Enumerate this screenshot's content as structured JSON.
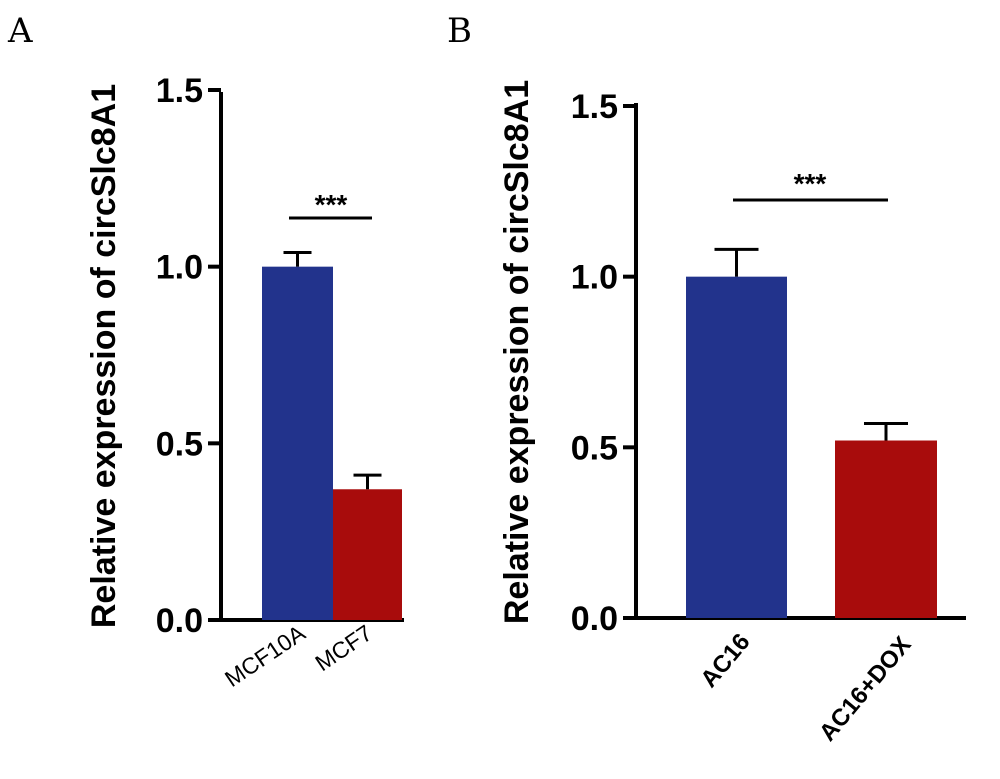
{
  "chart_data": [
    {
      "type": "bar",
      "panel": "A",
      "ylabel": "Relative expression of circSlc8A1",
      "ylim": [
        0,
        1.5
      ],
      "yticks": [
        "0.0",
        "0.5",
        "1.0",
        "1.5"
      ],
      "categories": [
        "MCF10A",
        "MCF7"
      ],
      "values": [
        1.0,
        0.37
      ],
      "errors": [
        0.04,
        0.04
      ],
      "colors": [
        "#22338c",
        "#a80c0c"
      ],
      "significance": {
        "label": "***",
        "from": 0,
        "to": 1
      }
    },
    {
      "type": "bar",
      "panel": "B",
      "ylabel": "Relative expression of circSlc8A1",
      "ylim": [
        0,
        1.5
      ],
      "yticks": [
        "0.0",
        "0.5",
        "1.0",
        "1.5"
      ],
      "categories": [
        "AC16",
        "AC16+DOX"
      ],
      "values": [
        1.0,
        0.52
      ],
      "errors": [
        0.08,
        0.05
      ],
      "colors": [
        "#22338c",
        "#a80c0c"
      ],
      "significance": {
        "label": "***",
        "from": 0,
        "to": 1
      }
    }
  ]
}
